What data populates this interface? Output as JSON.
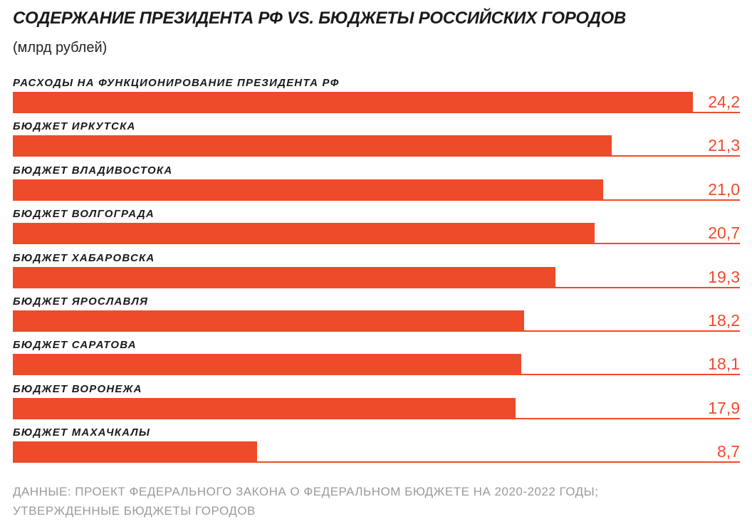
{
  "chart_data": {
    "type": "bar",
    "title": "СОДЕРЖАНИЕ ПРЕЗИДЕНТА РФ VS. БЮДЖЕТЫ РОССИЙСКИХ ГОРОДОВ",
    "subtitle": "(млрд рублей)",
    "categories": [
      "РАСХОДЫ НА ФУНКЦИОНИРОВАНИЕ ПРЕЗИДЕНТА РФ",
      "БЮДЖЕТ ИРКУТСКА",
      "БЮДЖЕТ ВЛАДИВОСТОКА",
      "БЮДЖЕТ ВОЛГОГРАДА",
      "БЮДЖЕТ ХАБАРОВСКА",
      "БЮДЖЕТ ЯРОСЛАВЛЯ",
      "БЮДЖЕТ САРАТОВА",
      "БЮДЖЕТ ВОРОНЕЖА",
      "БЮДЖЕТ МАХАЧКАЛЫ"
    ],
    "values": [
      24.2,
      21.3,
      21.0,
      20.7,
      19.3,
      18.2,
      18.1,
      17.9,
      8.7
    ],
    "value_labels": [
      "24,2",
      "21,3",
      "21,0",
      "20,7",
      "19,3",
      "18,2",
      "18,1",
      "17,9",
      "8,7"
    ],
    "xlim": [
      0,
      25.9
    ],
    "bar_color": "#ee4b2b",
    "footer": [
      "ДАННЫЕ: ПРОЕКТ ФЕДЕРАЛЬНОГО ЗАКОНА О ФЕДЕРАЛЬНОМ БЮДЖЕТЕ НА 2020-2022 ГОДЫ;",
      "УТВЕРЖДЕННЫЕ БЮДЖЕТЫ ГОРОДОВ"
    ]
  }
}
